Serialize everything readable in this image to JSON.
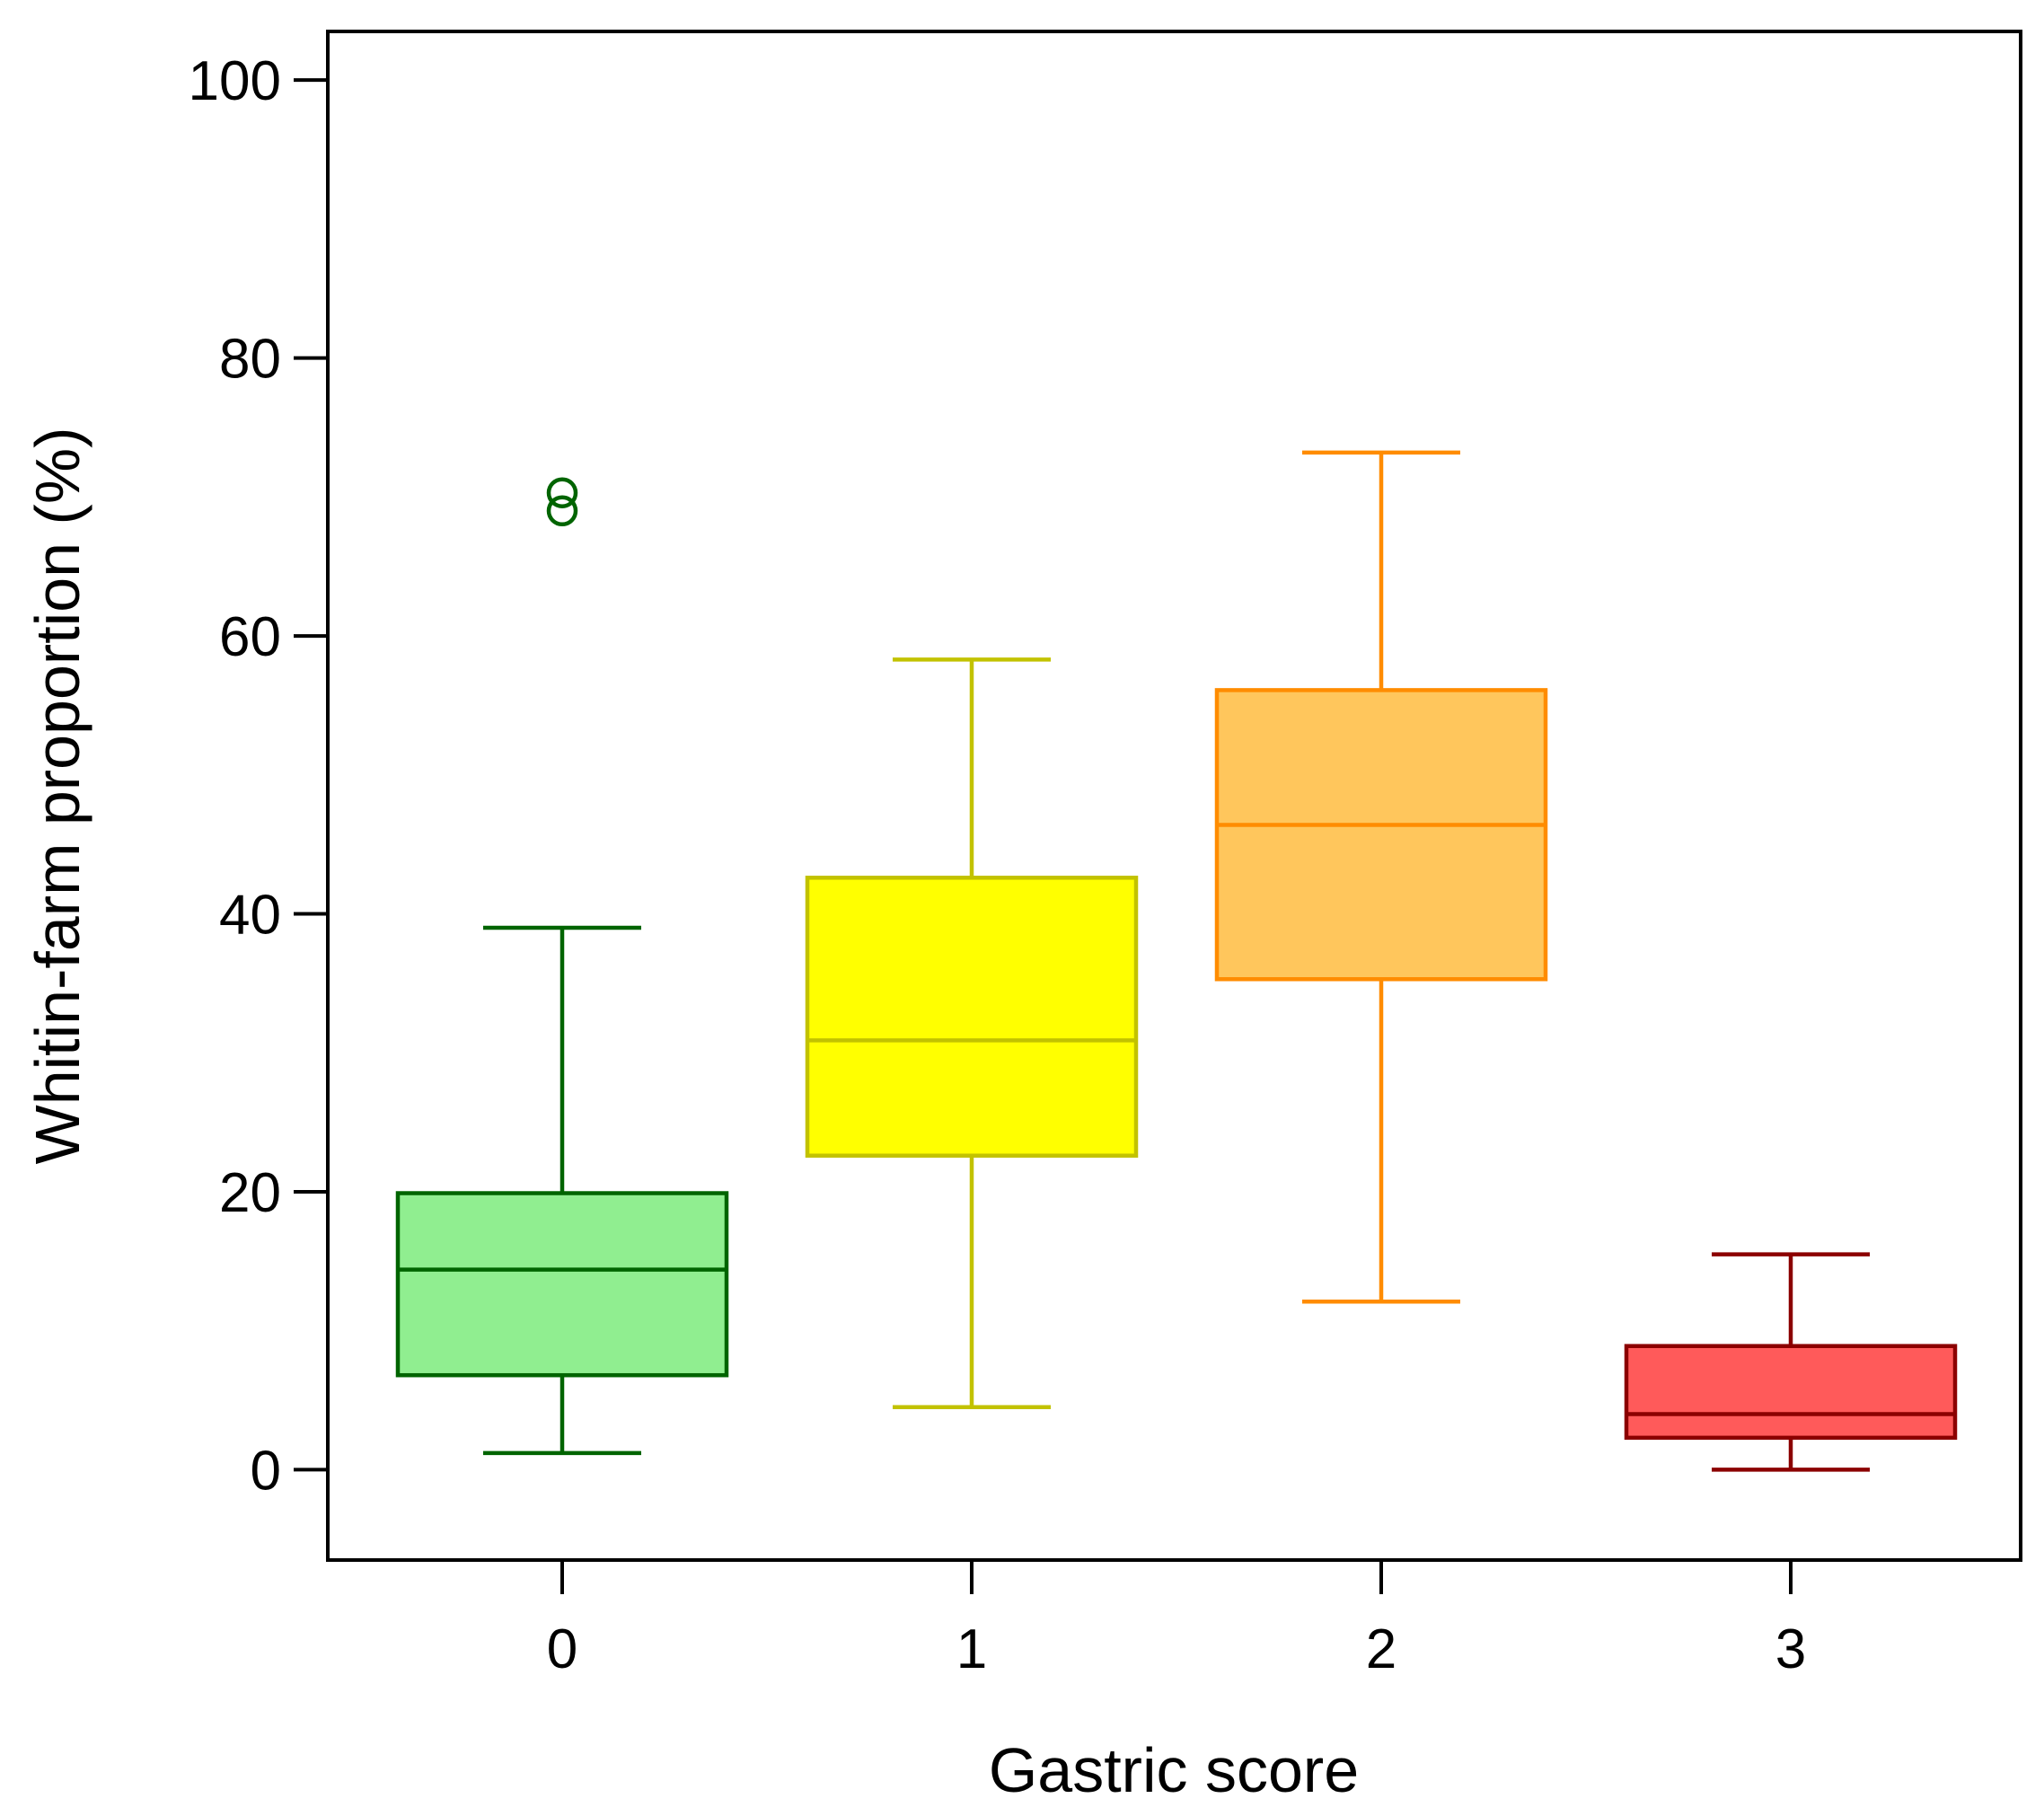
{
  "chart_data": {
    "type": "boxplot",
    "title": "",
    "xlabel": "Gastric score",
    "ylabel": "Whitin-farm proportion (%)",
    "ylim": [
      -6.5,
      103.5
    ],
    "yticks": [
      0,
      20,
      40,
      60,
      80,
      100
    ],
    "grid": false,
    "legend": "none",
    "categories": [
      "0",
      "1",
      "2",
      "3"
    ],
    "boxes": [
      {
        "category": "0",
        "whisker_low": 1.2,
        "q1": 6.8,
        "median": 14.4,
        "q3": 19.9,
        "whisker_high": 39.0,
        "outliers": [
          70.3,
          69.0
        ],
        "fill": "#90EE90",
        "stroke": "#006400"
      },
      {
        "category": "1",
        "whisker_low": 4.5,
        "q1": 22.6,
        "median": 30.9,
        "q3": 42.6,
        "whisker_high": 58.3,
        "outliers": [],
        "fill": "#FFFF00",
        "stroke": "#C2C200"
      },
      {
        "category": "2",
        "whisker_low": 12.1,
        "q1": 35.3,
        "median": 46.4,
        "q3": 56.1,
        "whisker_high": 73.2,
        "outliers": [],
        "fill": "#FFC65C",
        "stroke": "#FF8C00"
      },
      {
        "category": "3",
        "whisker_low": 0.0,
        "q1": 2.3,
        "median": 4.0,
        "q3": 8.9,
        "whisker_high": 15.5,
        "outliers": [],
        "fill": "#FF5A5A",
        "stroke": "#8B0000"
      }
    ]
  }
}
